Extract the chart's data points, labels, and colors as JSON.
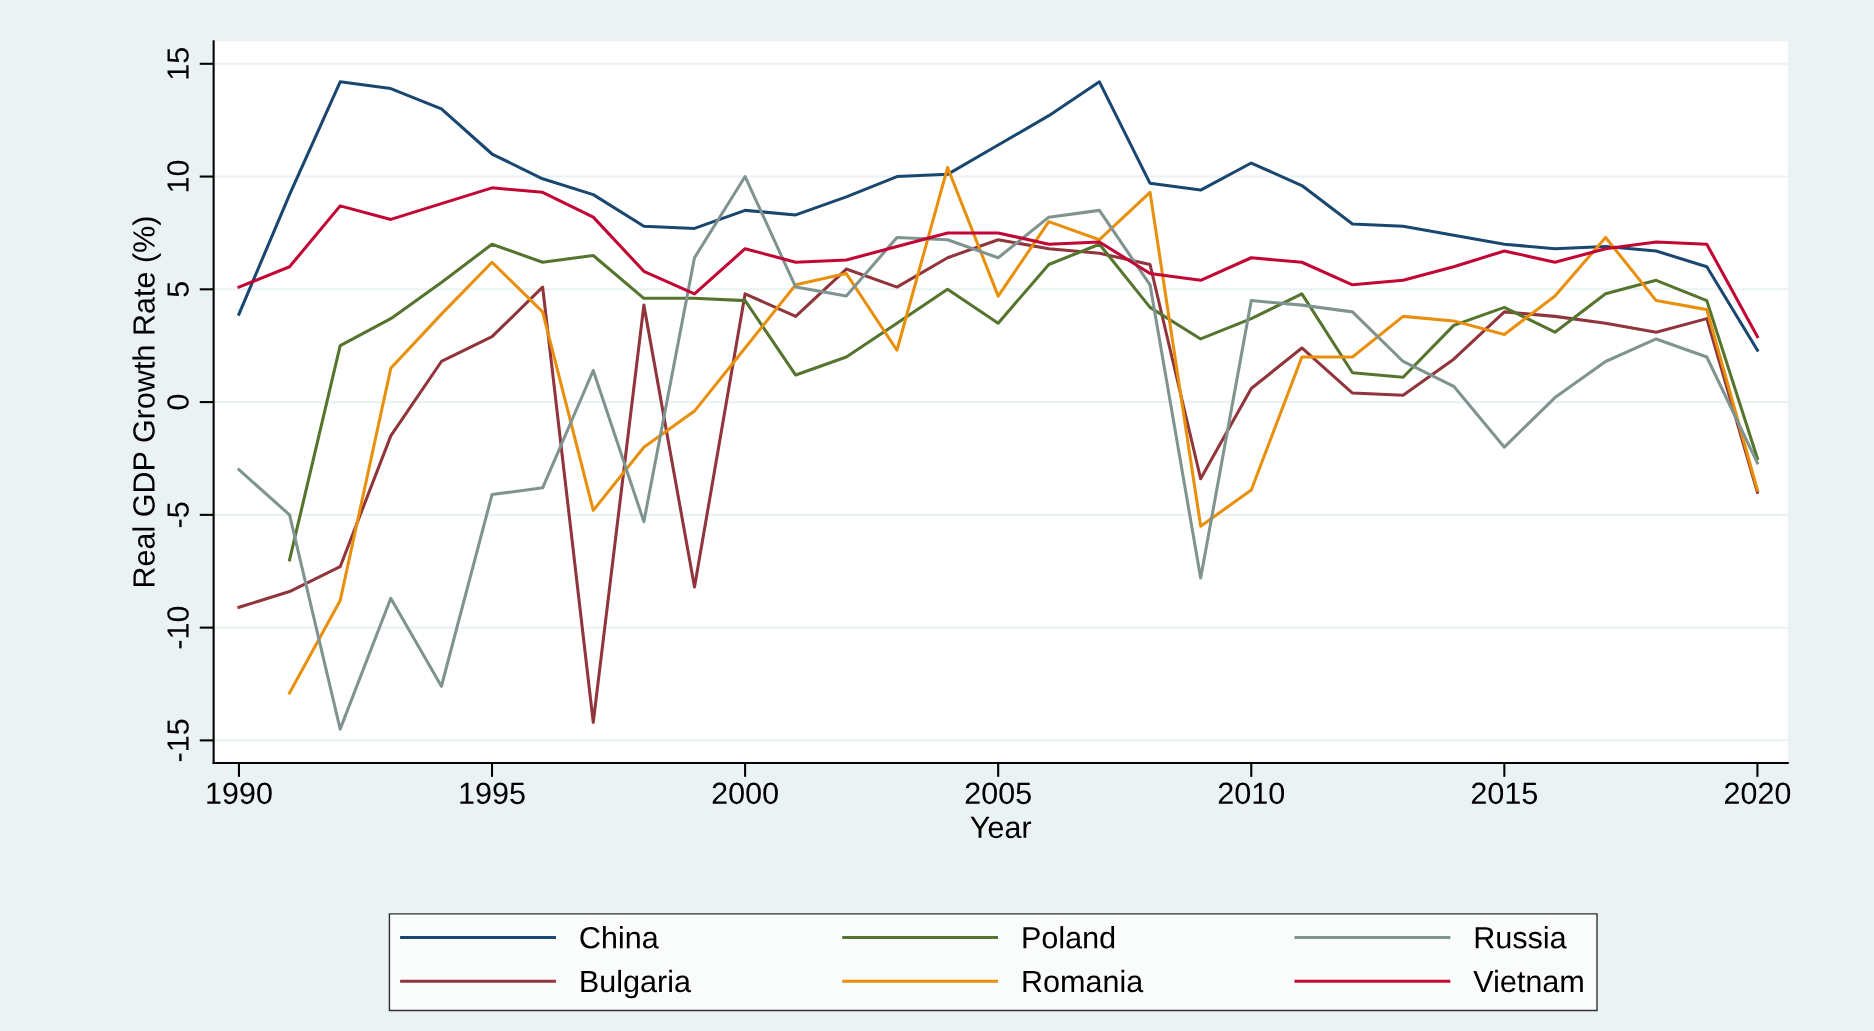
{
  "chart_data": {
    "type": "line",
    "xlabel": "Year",
    "ylabel": "Real GDP Growth Rate (%)",
    "x": [
      1990,
      1991,
      1992,
      1993,
      1994,
      1995,
      1996,
      1997,
      1998,
      1999,
      2000,
      2001,
      2002,
      2003,
      2004,
      2005,
      2006,
      2007,
      2008,
      2009,
      2010,
      2011,
      2012,
      2013,
      2014,
      2015,
      2016,
      2017,
      2018,
      2019,
      2020
    ],
    "series": [
      {
        "name": "China",
        "color": "#1a476f",
        "values": [
          3.9,
          9.2,
          14.2,
          13.9,
          13.0,
          11.0,
          9.9,
          9.2,
          7.8,
          7.7,
          8.5,
          8.3,
          9.1,
          10.0,
          10.1,
          11.4,
          12.7,
          14.2,
          9.7,
          9.4,
          10.6,
          9.6,
          7.9,
          7.8,
          7.4,
          7.0,
          6.8,
          6.9,
          6.7,
          6.0,
          2.3
        ]
      },
      {
        "name": "Bulgaria",
        "color": "#90353b",
        "values": [
          -9.1,
          -8.4,
          -7.3,
          -1.5,
          1.8,
          2.9,
          5.1,
          -14.2,
          4.3,
          -8.2,
          4.8,
          3.8,
          5.9,
          5.1,
          6.4,
          7.2,
          6.8,
          6.6,
          6.1,
          -3.4,
          0.6,
          2.4,
          0.4,
          0.3,
          1.9,
          4.0,
          3.8,
          3.5,
          3.1,
          3.7,
          -4.0
        ]
      },
      {
        "name": "Poland",
        "color": "#55752f",
        "values": [
          null,
          -7.0,
          2.5,
          3.7,
          5.3,
          7.0,
          6.2,
          6.5,
          4.6,
          4.6,
          4.5,
          1.2,
          2.0,
          3.5,
          5.0,
          3.5,
          6.1,
          7.0,
          4.2,
          2.8,
          3.7,
          4.8,
          1.3,
          1.1,
          3.4,
          4.2,
          3.1,
          4.8,
          5.4,
          4.5,
          -2.5
        ]
      },
      {
        "name": "Romania",
        "color": "#e8900c",
        "values": [
          null,
          -12.9,
          -8.8,
          1.5,
          3.9,
          6.2,
          4.0,
          -4.8,
          -2.0,
          -0.4,
          2.4,
          5.2,
          5.7,
          2.3,
          10.4,
          4.7,
          8.0,
          7.2,
          9.3,
          -5.5,
          -3.9,
          2.0,
          2.0,
          3.8,
          3.6,
          3.0,
          4.7,
          7.3,
          4.5,
          4.1,
          -3.9
        ]
      },
      {
        "name": "Russia",
        "color": "#7f9490",
        "values": [
          -3.0,
          -5.0,
          -14.5,
          -8.7,
          -12.6,
          -4.1,
          -3.8,
          1.4,
          -5.3,
          6.4,
          10.0,
          5.1,
          4.7,
          7.3,
          7.2,
          6.4,
          8.2,
          8.5,
          5.2,
          -7.8,
          4.5,
          4.3,
          4.0,
          1.8,
          0.7,
          -2.0,
          0.2,
          1.8,
          2.8,
          2.0,
          -2.7
        ]
      },
      {
        "name": "Vietnam",
        "color": "#c10534",
        "values": [
          5.1,
          6.0,
          8.7,
          8.1,
          8.8,
          9.5,
          9.3,
          8.2,
          5.8,
          4.8,
          6.8,
          6.2,
          6.3,
          6.9,
          7.5,
          7.5,
          7.0,
          7.1,
          5.7,
          5.4,
          6.4,
          6.2,
          5.2,
          5.4,
          6.0,
          6.7,
          6.2,
          6.8,
          7.1,
          7.0,
          2.9
        ]
      }
    ],
    "xlim": [
      1989.5,
      2020.6
    ],
    "ylim": [
      -16,
      16
    ],
    "xticks": [
      1990,
      1995,
      2000,
      2005,
      2010,
      2015,
      2020
    ],
    "yticks": [
      -15,
      -10,
      -5,
      0,
      5,
      10,
      15
    ],
    "grid": "y",
    "legend": "bottom",
    "marker": "none",
    "line_style": "solid"
  }
}
